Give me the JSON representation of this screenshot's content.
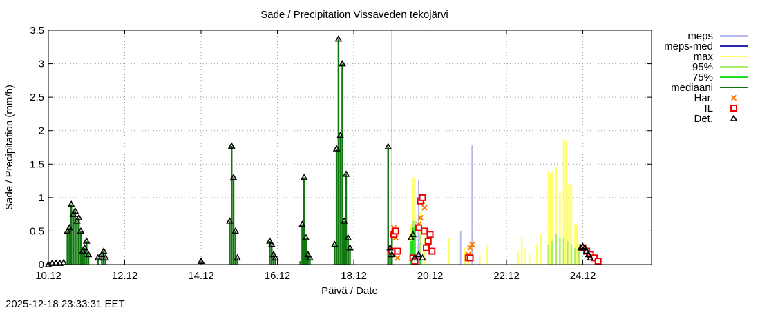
{
  "chart_data": {
    "type": "bar",
    "title": "Sade / Precipitation  Vissaveden tekojärvi",
    "xlabel": "Päivä / Date",
    "ylabel": "Sade / Precipitation (mm/h)",
    "timestamp": "2025-12-18 23:33:31 EET",
    "x_unit": "days since 10.12 00:00",
    "xlim": [
      0,
      15.8
    ],
    "ylim": [
      0,
      3.5
    ],
    "grid": true,
    "legend_position": "outside-right",
    "x_ticks": [
      {
        "value": 0,
        "label": "10.12"
      },
      {
        "value": 2,
        "label": "12.12"
      },
      {
        "value": 4,
        "label": "14.12"
      },
      {
        "value": 6,
        "label": "16.12"
      },
      {
        "value": 8,
        "label": "18.12"
      },
      {
        "value": 10,
        "label": "20.12"
      },
      {
        "value": 12,
        "label": "22.12"
      },
      {
        "value": 14,
        "label": "24.12"
      }
    ],
    "y_ticks": [
      {
        "value": 0,
        "label": "0"
      },
      {
        "value": 0.5,
        "label": "0.5"
      },
      {
        "value": 1,
        "label": "1"
      },
      {
        "value": 1.5,
        "label": "1.5"
      },
      {
        "value": 2,
        "label": "2"
      },
      {
        "value": 2.5,
        "label": "2.5"
      },
      {
        "value": 3,
        "label": "3"
      },
      {
        "value": 3.5,
        "label": "3.5"
      }
    ],
    "now_marker_x": 9.0,
    "legend": [
      {
        "key": "meps",
        "label": "meps",
        "color": "#b8b8f0",
        "style": "line"
      },
      {
        "key": "meps_med",
        "label": "meps-med",
        "color": "#2a2aa8",
        "style": "line"
      },
      {
        "key": "max",
        "label": "max",
        "color": "#ffff66",
        "style": "line"
      },
      {
        "key": "p95",
        "label": "95%",
        "color": "#aaee66",
        "style": "line"
      },
      {
        "key": "p75",
        "label": "75%",
        "color": "#22dd22",
        "style": "line"
      },
      {
        "key": "median",
        "label": "mediaani",
        "color": "#117711",
        "style": "line"
      },
      {
        "key": "har",
        "label": "Har.",
        "color": "#ff7700",
        "style": "x"
      },
      {
        "key": "il",
        "label": "IL",
        "color": "#ee0000",
        "style": "square"
      },
      {
        "key": "det",
        "label": "Det.",
        "color": "#000000",
        "style": "triangle"
      }
    ],
    "series": {
      "observed": [
        [
          0.5,
          0.5
        ],
        [
          0.55,
          0.55
        ],
        [
          0.6,
          0.9
        ],
        [
          0.65,
          0.75
        ],
        [
          0.7,
          0.8
        ],
        [
          0.75,
          0.65
        ],
        [
          0.8,
          0.7
        ],
        [
          0.85,
          0.5
        ],
        [
          0.9,
          0.2
        ],
        [
          0.95,
          0.25
        ],
        [
          1.0,
          0.35
        ],
        [
          1.05,
          0.15
        ],
        [
          1.3,
          0.1
        ],
        [
          1.4,
          0.15
        ],
        [
          1.45,
          0.2
        ],
        [
          1.5,
          0.1
        ],
        [
          4.75,
          0.65
        ],
        [
          4.8,
          1.77
        ],
        [
          4.85,
          1.3
        ],
        [
          4.9,
          0.5
        ],
        [
          4.95,
          0.1
        ],
        [
          5.8,
          0.35
        ],
        [
          5.85,
          0.3
        ],
        [
          5.9,
          0.15
        ],
        [
          5.95,
          0.1
        ],
        [
          6.6,
          0.05
        ],
        [
          6.65,
          0.6
        ],
        [
          6.7,
          1.3
        ],
        [
          6.75,
          0.4
        ],
        [
          6.8,
          0.15
        ],
        [
          6.85,
          0.1
        ],
        [
          7.5,
          0.3
        ],
        [
          7.55,
          1.73
        ],
        [
          7.6,
          3.37
        ],
        [
          7.65,
          1.93
        ],
        [
          7.7,
          3.0
        ],
        [
          7.75,
          0.65
        ],
        [
          7.8,
          1.35
        ],
        [
          7.85,
          0.4
        ],
        [
          7.9,
          0.25
        ],
        [
          8.9,
          1.76
        ],
        [
          8.95,
          0.25
        ],
        [
          9.0,
          0.5
        ]
      ],
      "forecast_max": [
        [
          9.5,
          0.6
        ],
        [
          9.55,
          1.3
        ],
        [
          9.6,
          1.3
        ],
        [
          9.7,
          0.9
        ],
        [
          9.75,
          0.8
        ],
        [
          9.85,
          0.4
        ],
        [
          10.5,
          0.4
        ],
        [
          10.9,
          0.25
        ],
        [
          11.0,
          0.15
        ],
        [
          11.3,
          0.15
        ],
        [
          11.5,
          0.3
        ],
        [
          12.3,
          0.2
        ],
        [
          12.4,
          0.4
        ],
        [
          12.5,
          0.25
        ],
        [
          12.6,
          0.15
        ],
        [
          12.8,
          0.3
        ],
        [
          12.9,
          0.45
        ],
        [
          13.1,
          1.4
        ],
        [
          13.15,
          1.35
        ],
        [
          13.2,
          1.4
        ],
        [
          13.3,
          1.45
        ],
        [
          13.4,
          1.1
        ],
        [
          13.5,
          1.88
        ],
        [
          13.55,
          1.85
        ],
        [
          13.6,
          1.2
        ],
        [
          13.65,
          1.2
        ],
        [
          13.7,
          1.2
        ],
        [
          13.8,
          0.6
        ],
        [
          13.85,
          0.6
        ],
        [
          13.9,
          0.3
        ]
      ],
      "forecast_p95": [
        [
          9.55,
          0.65
        ],
        [
          9.6,
          0.65
        ],
        [
          9.7,
          0.5
        ],
        [
          9.75,
          0.45
        ],
        [
          13.1,
          0.3
        ],
        [
          13.2,
          0.35
        ],
        [
          13.3,
          0.45
        ],
        [
          13.4,
          0.4
        ],
        [
          13.5,
          0.4
        ],
        [
          13.6,
          0.35
        ],
        [
          13.7,
          0.3
        ],
        [
          13.8,
          0.25
        ],
        [
          13.9,
          0.2
        ]
      ],
      "forecast_median": [
        [
          9.5,
          0.35
        ],
        [
          9.55,
          0.55
        ],
        [
          9.6,
          0.55
        ],
        [
          9.7,
          0.3
        ],
        [
          9.75,
          0.15
        ]
      ],
      "meps_peaks": [
        [
          9.7,
          1.27
        ],
        [
          10.8,
          0.5
        ],
        [
          11.1,
          1.78
        ]
      ],
      "har_points": [
        [
          9.05,
          0.55
        ],
        [
          9.1,
          0.4
        ],
        [
          9.15,
          0.1
        ],
        [
          9.6,
          0.1
        ],
        [
          9.7,
          0.6
        ],
        [
          9.75,
          0.7
        ],
        [
          9.8,
          0.95
        ],
        [
          9.85,
          0.85
        ],
        [
          9.9,
          0.5
        ],
        [
          11.0,
          0.15
        ],
        [
          11.05,
          0.25
        ],
        [
          11.1,
          0.3
        ]
      ],
      "il_points": [
        [
          9.0,
          0.2
        ],
        [
          9.05,
          0.45
        ],
        [
          9.1,
          0.5
        ],
        [
          9.15,
          0.2
        ],
        [
          9.55,
          0.1
        ],
        [
          9.6,
          0.05
        ],
        [
          9.7,
          0.55
        ],
        [
          9.75,
          0.95
        ],
        [
          9.8,
          1.0
        ],
        [
          9.85,
          0.5
        ],
        [
          9.9,
          0.25
        ],
        [
          9.95,
          0.35
        ],
        [
          10.0,
          0.45
        ],
        [
          10.05,
          0.2
        ],
        [
          11.0,
          0.1
        ],
        [
          11.05,
          0.1
        ],
        [
          14.0,
          0.25
        ],
        [
          14.1,
          0.2
        ],
        [
          14.2,
          0.15
        ],
        [
          14.3,
          0.1
        ],
        [
          14.4,
          0.05
        ]
      ],
      "det_points": [
        [
          0.0,
          0.0
        ],
        [
          0.1,
          0.02
        ],
        [
          0.2,
          0.02
        ],
        [
          0.3,
          0.02
        ],
        [
          0.4,
          0.03
        ],
        [
          0.5,
          0.5
        ],
        [
          0.55,
          0.55
        ],
        [
          0.6,
          0.9
        ],
        [
          0.65,
          0.75
        ],
        [
          0.7,
          0.8
        ],
        [
          0.75,
          0.65
        ],
        [
          0.8,
          0.7
        ],
        [
          0.85,
          0.5
        ],
        [
          0.9,
          0.2
        ],
        [
          0.95,
          0.25
        ],
        [
          1.0,
          0.35
        ],
        [
          1.05,
          0.15
        ],
        [
          1.3,
          0.1
        ],
        [
          1.4,
          0.15
        ],
        [
          1.45,
          0.2
        ],
        [
          1.5,
          0.1
        ],
        [
          4.0,
          0.05
        ],
        [
          4.75,
          0.65
        ],
        [
          4.8,
          1.77
        ],
        [
          4.85,
          1.3
        ],
        [
          4.9,
          0.5
        ],
        [
          4.95,
          0.1
        ],
        [
          5.8,
          0.35
        ],
        [
          5.85,
          0.3
        ],
        [
          5.9,
          0.15
        ],
        [
          5.95,
          0.1
        ],
        [
          6.65,
          0.6
        ],
        [
          6.7,
          1.3
        ],
        [
          6.75,
          0.4
        ],
        [
          6.8,
          0.15
        ],
        [
          6.85,
          0.1
        ],
        [
          7.5,
          0.3
        ],
        [
          7.55,
          1.73
        ],
        [
          7.6,
          3.37
        ],
        [
          7.65,
          1.93
        ],
        [
          7.7,
          3.0
        ],
        [
          7.75,
          0.65
        ],
        [
          7.8,
          1.35
        ],
        [
          7.85,
          0.4
        ],
        [
          7.9,
          0.25
        ],
        [
          8.9,
          1.76
        ],
        [
          8.95,
          0.25
        ],
        [
          9.0,
          0.15
        ],
        [
          9.5,
          0.4
        ],
        [
          9.55,
          0.45
        ],
        [
          9.6,
          0.1
        ],
        [
          9.7,
          0.15
        ],
        [
          9.8,
          0.1
        ],
        [
          13.95,
          0.25
        ],
        [
          14.0,
          0.27
        ],
        [
          14.05,
          0.25
        ],
        [
          14.1,
          0.2
        ],
        [
          14.15,
          0.15
        ],
        [
          14.2,
          0.1
        ]
      ]
    }
  }
}
